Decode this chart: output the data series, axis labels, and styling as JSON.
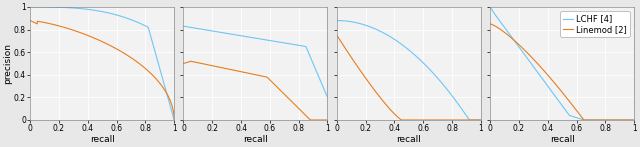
{
  "figsize": [
    6.4,
    1.47
  ],
  "dpi": 100,
  "blue_color": "#6EC6F5",
  "orange_color": "#E87D1E",
  "line_width": 0.8,
  "xlabel": "recall",
  "ylabel": "precision",
  "legend_labels": [
    "LCHF [4]",
    "Linemod [2]"
  ],
  "tick_fontsize": 5.5,
  "label_fontsize": 6.5,
  "legend_fontsize": 6.0,
  "bg_color": "#f0f0f0",
  "grid_color": "#ffffff",
  "subplot_bg": "#f8f8f8"
}
